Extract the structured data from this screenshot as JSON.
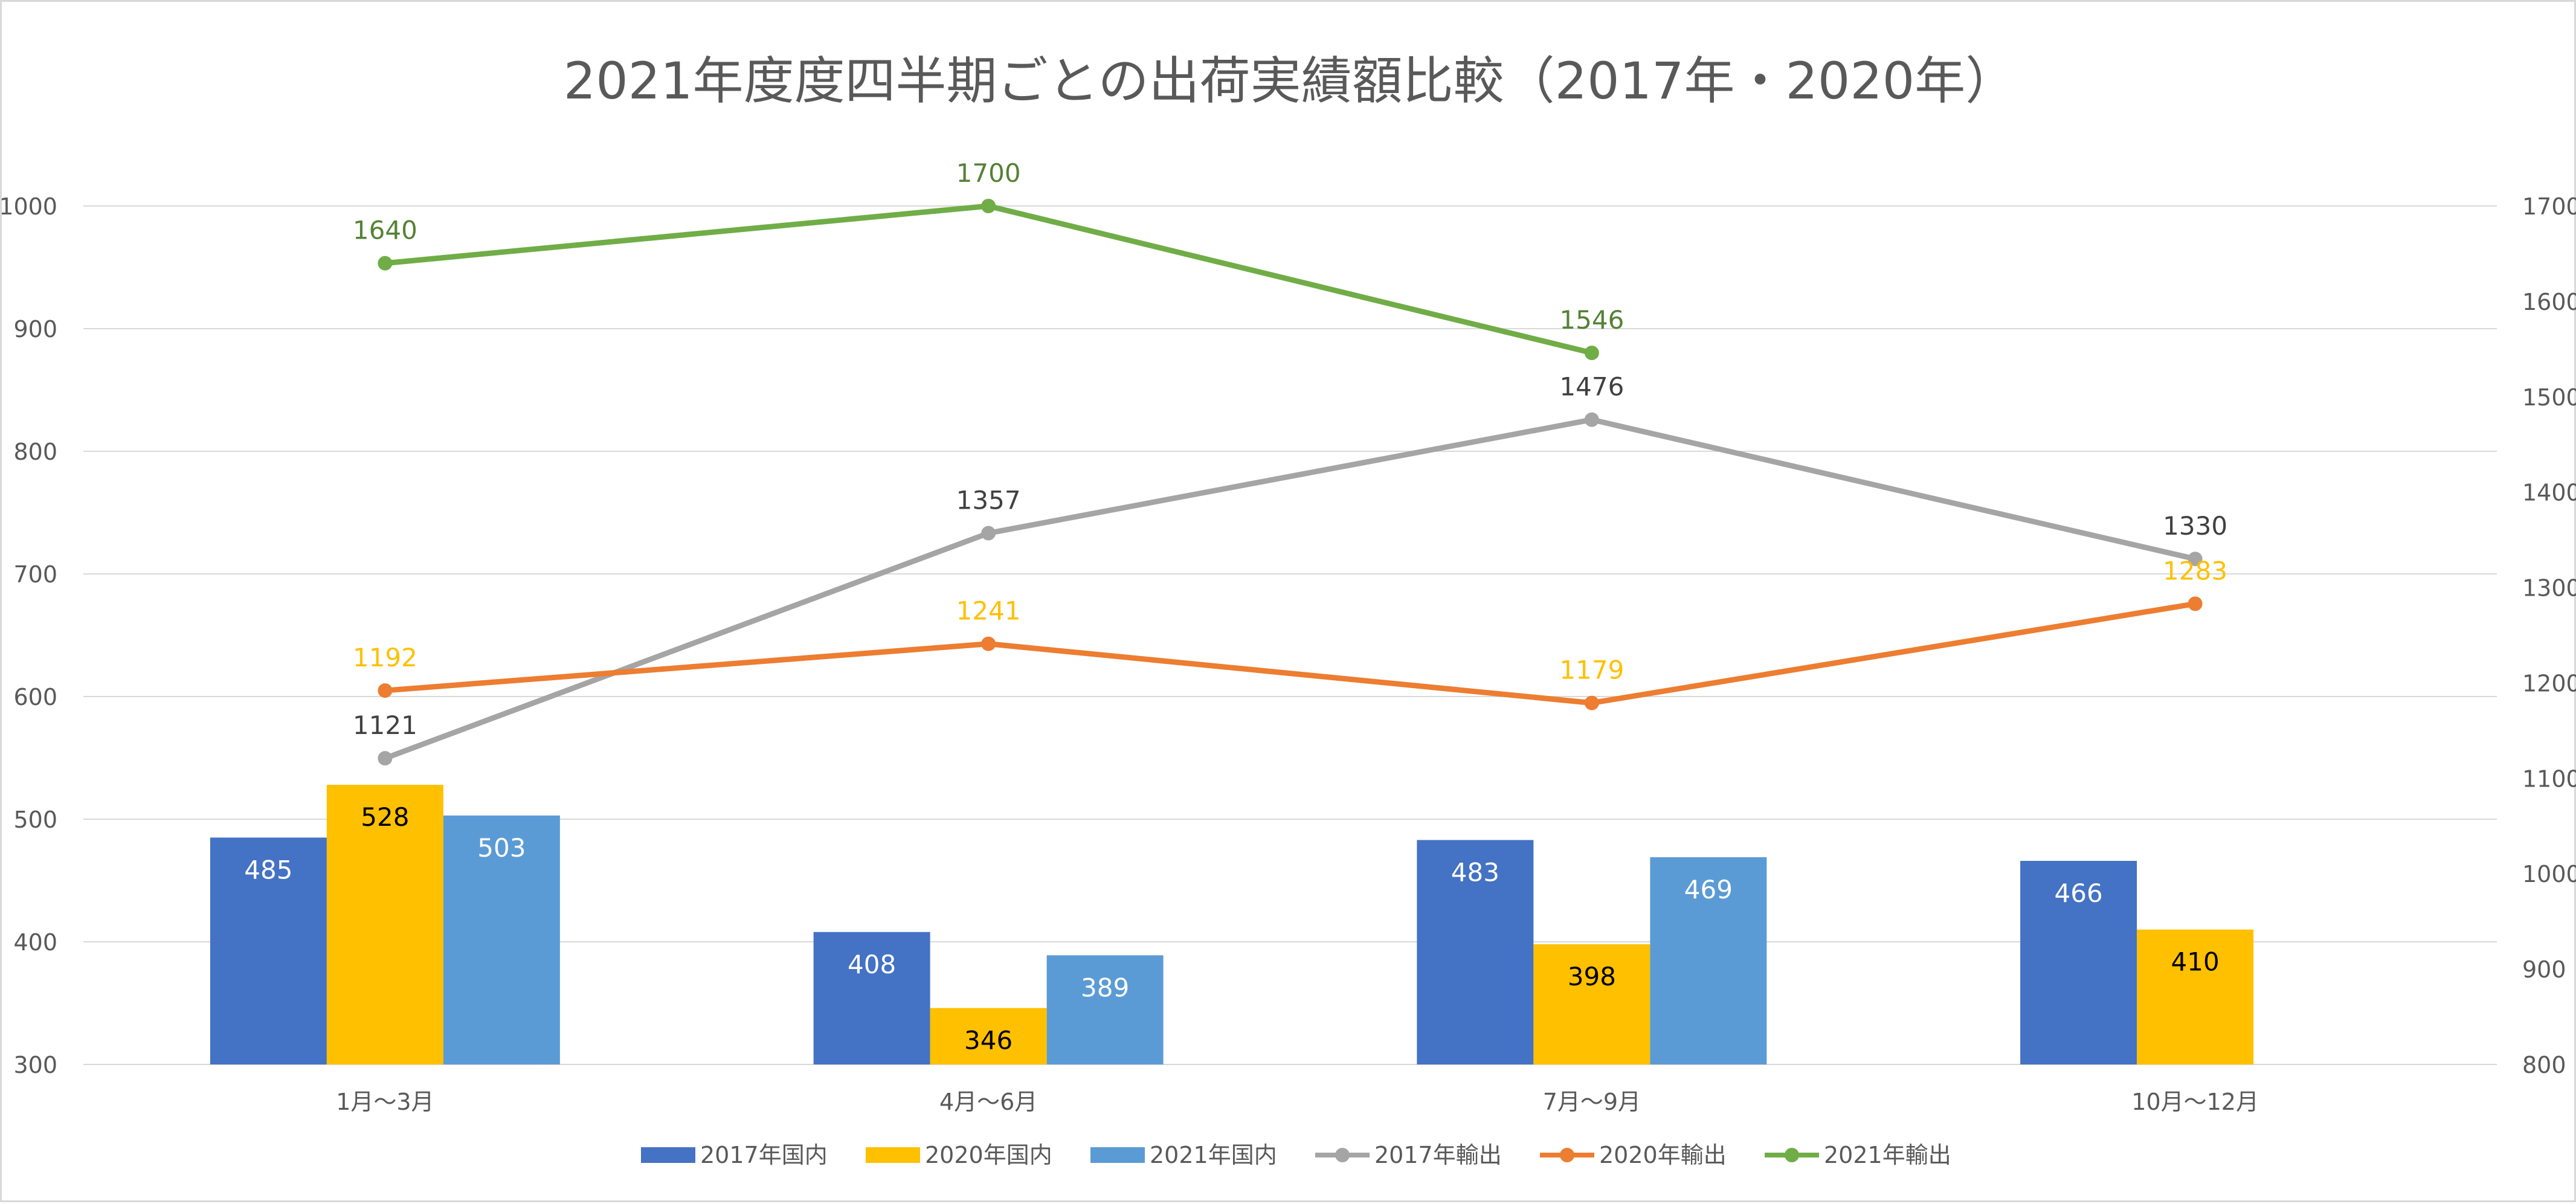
{
  "chart_data": {
    "type": "bar",
    "title": "2021年度度四半期ごとの出荷実績額比較（2017年・2020年）",
    "categories": [
      "1月～3月",
      "4月～6月",
      "7月～9月",
      "10月～12月"
    ],
    "y_left": {
      "range": [
        300,
        1000
      ],
      "ticks": [
        "300",
        "400",
        "500",
        "600",
        "700",
        "800",
        "900",
        "1000"
      ]
    },
    "y_right": {
      "range": [
        800,
        1700
      ],
      "ticks": [
        "800",
        "900",
        "1000",
        "1100",
        "1200",
        "1300",
        "1400",
        "1500",
        "1600",
        "1700"
      ]
    },
    "grid": true,
    "legend_position": "bottom",
    "bar_series": [
      {
        "name": "2017年国内",
        "color": "#4472c4",
        "label_color": "#ffffff",
        "values": [
          485,
          408,
          483,
          466
        ],
        "labels": [
          "485",
          "408",
          "483",
          "466"
        ]
      },
      {
        "name": "2020年国内",
        "color": "#ffc000",
        "label_color": "#000000",
        "values": [
          528,
          346,
          398,
          410
        ],
        "labels": [
          "528",
          "346",
          "398",
          "410"
        ]
      },
      {
        "name": "2021年国内",
        "color": "#5b9bd5",
        "label_color": "#ffffff",
        "values": [
          503,
          389,
          469,
          null
        ],
        "labels": [
          "503",
          "389",
          "469",
          null
        ]
      }
    ],
    "line_series": [
      {
        "name": "2017年輸出",
        "color": "#a5a5a5",
        "label_color": "#404040",
        "axis": "right",
        "values": [
          1121,
          1357,
          1476,
          1330
        ],
        "labels": [
          "1121",
          "1357",
          "1476",
          "1330"
        ]
      },
      {
        "name": "2020年輸出",
        "color": "#ed7d31",
        "label_color": "#ffc000",
        "axis": "right",
        "values": [
          1192,
          1241,
          1179,
          1283
        ],
        "labels": [
          "1192",
          "1241",
          "1179",
          "1283"
        ]
      },
      {
        "name": "2021年輸出",
        "color": "#70ad47",
        "label_color": "#548235",
        "axis": "right",
        "values": [
          1640,
          1700,
          1546,
          null
        ],
        "labels": [
          "1640",
          "1700",
          "1546",
          null
        ]
      }
    ]
  }
}
